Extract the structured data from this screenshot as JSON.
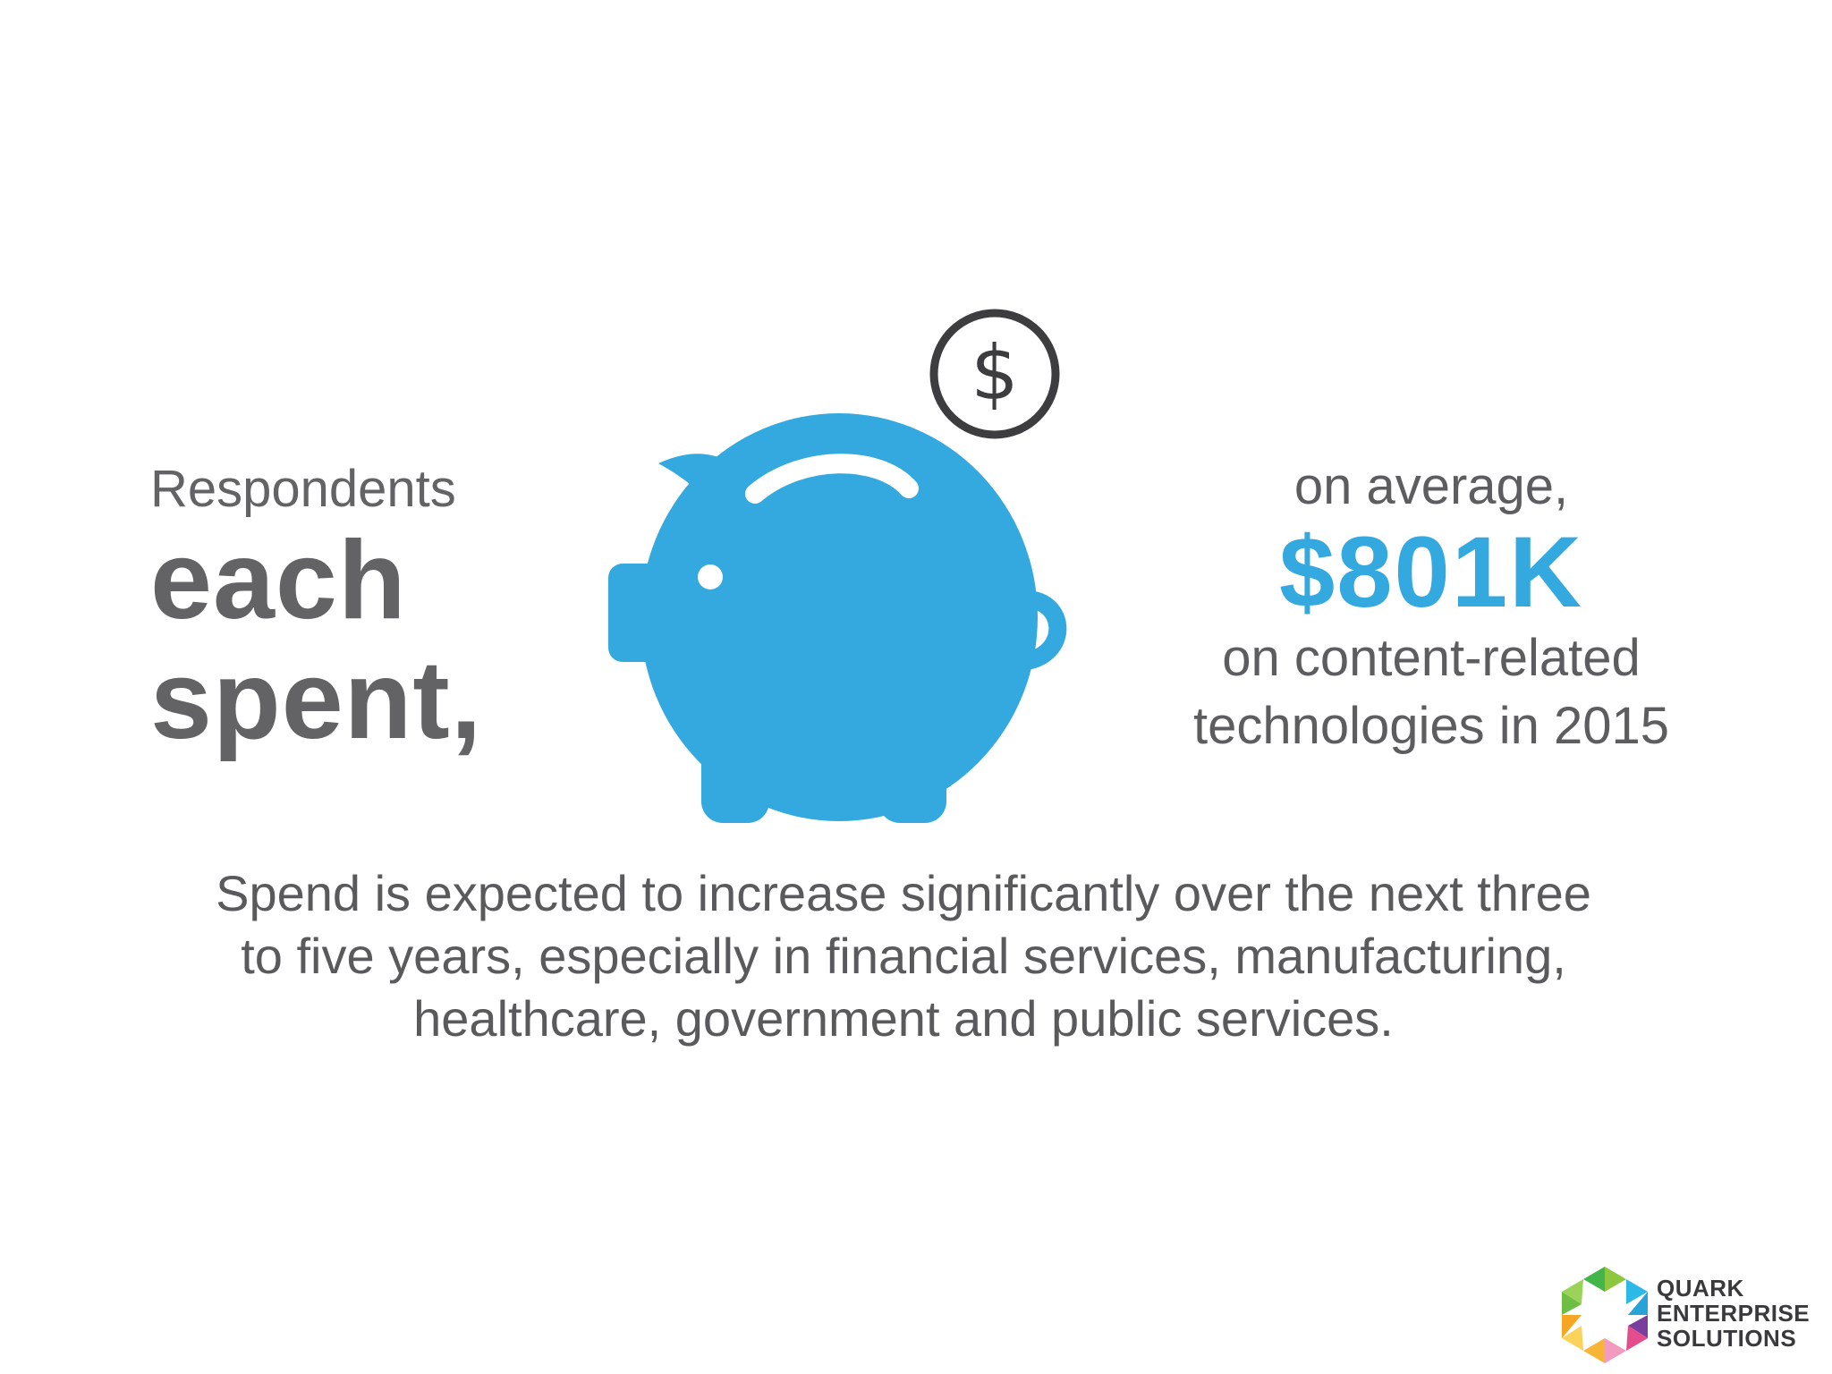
{
  "left": {
    "respondents": "Respondents",
    "line1": "each",
    "line2": "spent,"
  },
  "right": {
    "prefix": "on average,",
    "amount": "$801K",
    "suffix_line1": "on content-related",
    "suffix_line2": "technologies in 2015"
  },
  "bottom": {
    "line1": "Spend is expected to increase significantly over the next three",
    "line2": "to five years, especially in financial services, manufacturing,",
    "line3": "healthcare, government and public services."
  },
  "logo": {
    "line1": "QUARK",
    "line2": "ENTERPRISE",
    "line3": "SOLUTIONS"
  },
  "icons": {
    "pig": "piggy-bank-icon",
    "coin": "dollar-coin-icon"
  },
  "colors": {
    "accent": "#34a9df",
    "text": "#5f5f61"
  }
}
